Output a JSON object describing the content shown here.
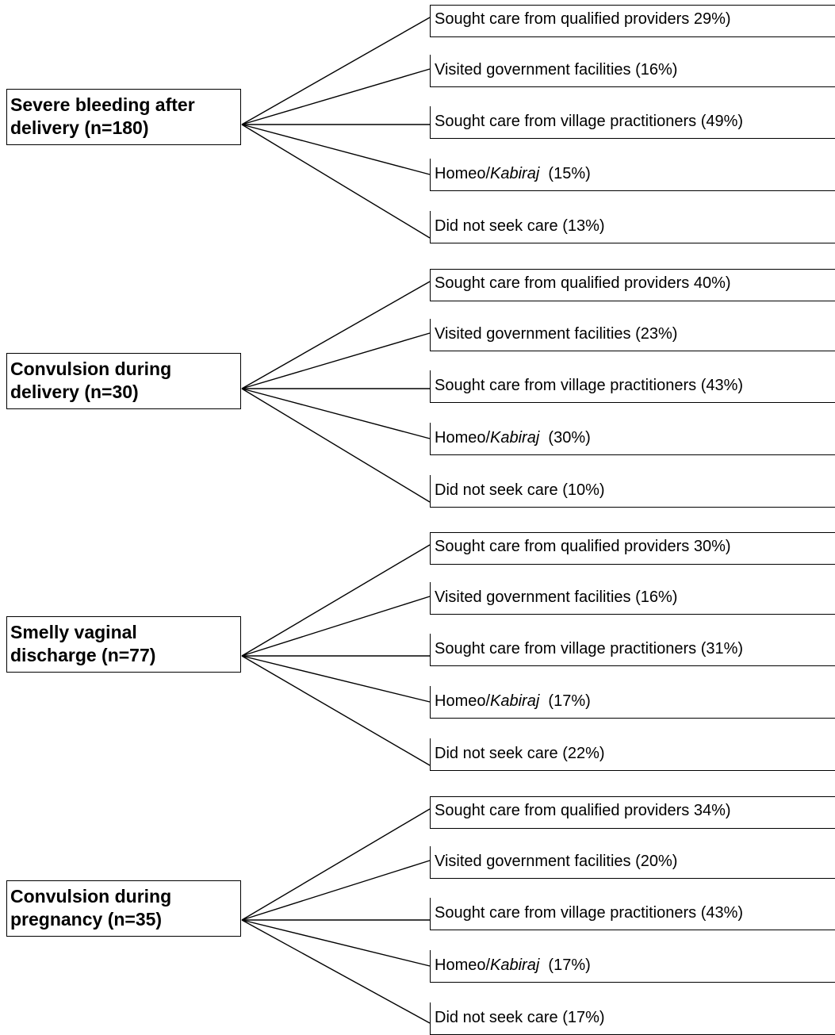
{
  "groups": [
    {
      "condition": [
        "Severe bleeding after",
        "delivery (n=180)"
      ],
      "outcomes": {
        "qualified": "Sought care from qualified providers 29%)",
        "government": "Visited government facilities  (16%)",
        "village": "Sought care from village practitioners  (49%)",
        "homeo_prefix": "Homeo/",
        "homeo_kabiraj": "Kabiraj",
        "homeo_value": "  (15%)",
        "none": "Did not seek care (13%)"
      }
    },
    {
      "condition": [
        "Convulsion during",
        "delivery (n=30)"
      ],
      "outcomes": {
        "qualified": "Sought care from qualified providers 40%)",
        "government": "Visited government facilities  (23%)",
        "village": "Sought care from village practitioners  (43%)",
        "homeo_prefix": "Homeo/",
        "homeo_kabiraj": "Kabiraj",
        "homeo_value": "  (30%)",
        "none": "Did not seek care (10%)"
      }
    },
    {
      "condition": [
        "Smelly vaginal",
        "discharge (n=77)"
      ],
      "outcomes": {
        "qualified": "Sought care from qualified providers 30%)",
        "government": "Visited government facilities  (16%)",
        "village": "Sought care from village practitioners  (31%)",
        "homeo_prefix": "Homeo/",
        "homeo_kabiraj": "Kabiraj",
        "homeo_value": "  (17%)",
        "none": "Did not seek care (22%)"
      }
    },
    {
      "condition": [
        "Convulsion during",
        "pregnancy (n=35)"
      ],
      "outcomes": {
        "qualified": "Sought care from qualified providers 34%)",
        "government": "Visited government facilities  (20%)",
        "village": "Sought care from village practitioners  (43%)",
        "homeo_prefix": "Homeo/",
        "homeo_kabiraj": "Kabiraj",
        "homeo_value": "  (17%)",
        "none": "Did not seek care (17%)"
      }
    }
  ]
}
